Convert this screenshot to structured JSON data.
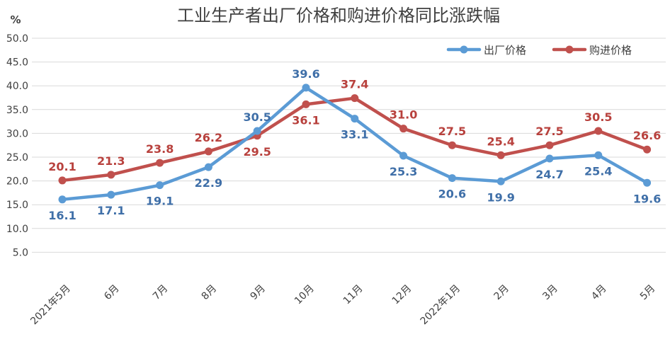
{
  "chart_data": {
    "type": "line",
    "title": "工业生产者出厂价格和购进价格同比涨跌幅",
    "ylabel": "%",
    "xlabel": "",
    "ylim": [
      0,
      50
    ],
    "ytick_step": 5,
    "ytick_labels": [
      "5.0",
      "10.0",
      "15.0",
      "20.0",
      "25.0",
      "30.0",
      "35.0",
      "40.0",
      "45.0",
      "50.0"
    ],
    "grid": true,
    "legend_position": "top-right",
    "categories": [
      "2021年5月",
      "6月",
      "7月",
      "8月",
      "9月",
      "10月",
      "11月",
      "12月",
      "2022年1月",
      "2月",
      "3月",
      "4月",
      "5月"
    ],
    "series": [
      {
        "name": "出厂价格",
        "color": "#5b9bd5",
        "label_color": "#3f6fa8",
        "values": [
          16.1,
          17.1,
          19.1,
          22.9,
          30.5,
          39.6,
          33.1,
          25.3,
          20.6,
          19.9,
          24.7,
          25.4,
          19.6
        ],
        "labels": [
          "16.1",
          "17.1",
          "19.1",
          "22.9",
          "30.5",
          "39.6",
          "33.1",
          "25.3",
          "20.6",
          "19.9",
          "24.7",
          "25.4",
          "19.6"
        ],
        "label_side": [
          "below",
          "below",
          "below",
          "below",
          "above",
          "above",
          "below",
          "below",
          "below",
          "below",
          "below",
          "below",
          "below"
        ]
      },
      {
        "name": "购进价格",
        "color": "#c0504d",
        "label_color": "#b8413d",
        "values": [
          20.1,
          21.3,
          23.8,
          26.2,
          29.5,
          36.1,
          37.4,
          31.0,
          27.5,
          25.4,
          27.5,
          30.5,
          26.6
        ],
        "labels": [
          "20.1",
          "21.3",
          "23.8",
          "26.2",
          "29.5",
          "36.1",
          "37.4",
          "31.0",
          "27.5",
          "25.4",
          "27.5",
          "30.5",
          "26.6"
        ],
        "label_side": [
          "above",
          "above",
          "above",
          "above",
          "below",
          "below",
          "above",
          "above",
          "above",
          "above",
          "above",
          "above",
          "above"
        ]
      }
    ]
  }
}
